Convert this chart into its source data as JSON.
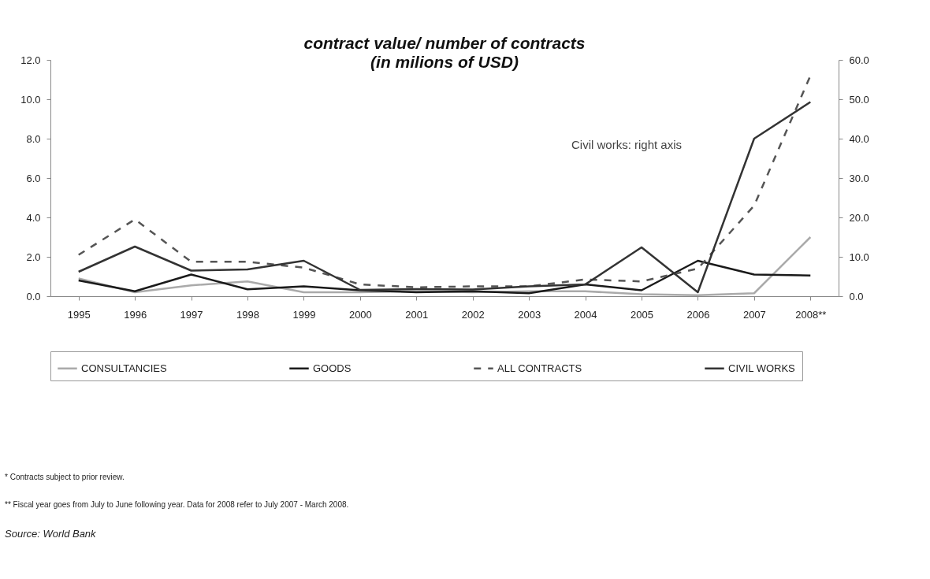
{
  "chart_data": {
    "type": "line",
    "title": "contract value/ number of contracts",
    "subtitle": "(in milions of USD)",
    "categories": [
      "1995",
      "1996",
      "1997",
      "1998",
      "1999",
      "2000",
      "2001",
      "2002",
      "2003",
      "2004",
      "2005",
      "2006",
      "2007",
      "2008**"
    ],
    "series": [
      {
        "name": "CONSULTANCIES",
        "color": "#aaaaaa",
        "line_style": "solid",
        "values": [
          0.9,
          0.2,
          0.55,
          0.75,
          0.2,
          0.2,
          0.25,
          0.2,
          0.25,
          0.25,
          0.1,
          0.05,
          0.15,
          3.0
        ]
      },
      {
        "name": "GOODS",
        "color": "#1a1a1a",
        "line_style": "solid",
        "values": [
          0.8,
          0.25,
          1.1,
          0.35,
          0.5,
          0.3,
          0.2,
          0.25,
          0.15,
          0.6,
          0.3,
          1.8,
          1.1,
          1.05
        ]
      },
      {
        "name": "ALL CONTRACTS",
        "color": "#555555",
        "line_style": "dashed",
        "values": [
          2.1,
          3.9,
          1.75,
          1.75,
          1.45,
          0.6,
          0.45,
          0.5,
          0.5,
          0.85,
          0.75,
          1.4,
          4.6,
          11.2
        ]
      },
      {
        "name": "CIVIL WORKS",
        "color": "#333333",
        "line_style": "solid",
        "axis": "y2",
        "values": [
          6.2,
          12.6,
          6.5,
          6.8,
          9.0,
          1.6,
          1.8,
          1.7,
          2.5,
          3.0,
          12.4,
          1.0,
          40.0,
          49.3
        ]
      }
    ],
    "ylim": [
      0,
      12
    ],
    "yticks": [
      {
        "value": 0,
        "label": "0.0"
      },
      {
        "value": 2,
        "label": "2.0"
      },
      {
        "value": 4,
        "label": "4.0"
      },
      {
        "value": 6,
        "label": "6.0"
      },
      {
        "value": 8,
        "label": "8.0"
      },
      {
        "value": 10,
        "label": "10.0"
      },
      {
        "value": 12,
        "label": "12.0"
      }
    ],
    "y2lim": [
      0,
      60
    ],
    "y2ticks": [
      {
        "value": 0,
        "label": "0.0"
      },
      {
        "value": 10,
        "label": "10.0"
      },
      {
        "value": 20,
        "label": "20.0"
      },
      {
        "value": 30,
        "label": "30.0"
      },
      {
        "value": 40,
        "label": "40.0"
      },
      {
        "value": 50,
        "label": "50.0"
      },
      {
        "value": 60,
        "label": "60.0"
      }
    ],
    "grid": false,
    "legend": "bottom",
    "marker": "none",
    "annotations": [
      "Civil works: right axis",
      "* Contracts subject to prior review.",
      "** Fiscal year goes from July to June following year. Data for 2008 refer to July 2007 - March 2008.",
      "Source: World Bank"
    ]
  }
}
